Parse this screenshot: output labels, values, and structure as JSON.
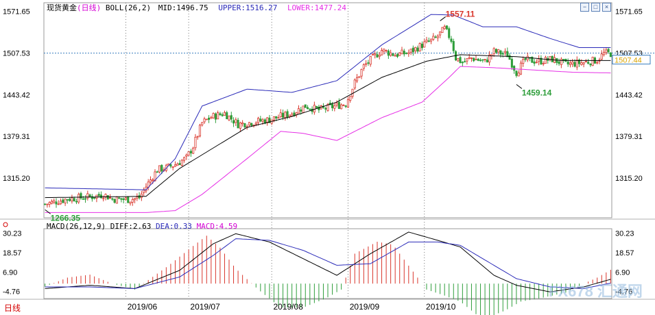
{
  "header": {
    "instrument": "现货黄金",
    "period_label": "(日线)",
    "indicator": "BOLL(26,2)",
    "mid": "MID:1496.75",
    "upper": "UPPER:1516.27",
    "lower": "LOWER:1477.24"
  },
  "macd_header": {
    "params": "MACD(26,12,9)",
    "diff": "DIFF:2.63",
    "dea": "DEA:0.33",
    "macd": "MACD:4.59"
  },
  "bottom": {
    "period_tab": "日线"
  },
  "controls": [
    {
      "name": "minus-icon",
      "glyph": "−"
    },
    {
      "name": "maximize-icon",
      "glyph": "□"
    },
    {
      "name": "close-icon",
      "glyph": "×"
    }
  ],
  "watermark": "FX678 汇通网",
  "colors": {
    "up": "#d9352b",
    "down": "#2e9e3b",
    "mid": "#000000",
    "upper": "#2929b8",
    "lower": "#e62ee6",
    "diff": "#000000",
    "dea": "#2929b8",
    "price_line": "#3a7fc0"
  },
  "chart_data": [
    {
      "type": "candlestick",
      "panel": "price",
      "y_ticks": [
        "1571.65",
        "1507.53",
        "1443.42",
        "1379.31",
        "1315.20"
      ],
      "ylim": [
        1254,
        1585
      ],
      "x_ticks": [
        "2019/06",
        "2019/07",
        "2019/08",
        "2019/09",
        "2019/10"
      ],
      "current_price": "1507.44",
      "reference_price": "1507.53",
      "annotations": [
        {
          "text": "1557.11",
          "kind": "high"
        },
        {
          "text": "1459.14",
          "kind": "low"
        },
        {
          "text": "1266.35",
          "kind": "low"
        }
      ],
      "close_path": [
        [
          0,
          1275
        ],
        [
          10,
          1283
        ],
        [
          22,
          1287
        ],
        [
          26,
          1290
        ],
        [
          30,
          1283
        ],
        [
          38,
          1282
        ],
        [
          42,
          1285
        ],
        [
          45,
          1302
        ],
        [
          50,
          1328
        ],
        [
          54,
          1331
        ],
        [
          58,
          1336
        ],
        [
          63,
          1346
        ],
        [
          66,
          1364
        ],
        [
          70,
          1400
        ],
        [
          74,
          1409
        ],
        [
          80,
          1415
        ],
        [
          86,
          1398
        ],
        [
          90,
          1400
        ],
        [
          100,
          1405
        ],
        [
          110,
          1415
        ],
        [
          116,
          1426
        ],
        [
          122,
          1420
        ],
        [
          128,
          1425
        ],
        [
          134,
          1430
        ],
        [
          138,
          1462
        ],
        [
          142,
          1487
        ],
        [
          146,
          1500
        ],
        [
          150,
          1512
        ],
        [
          156,
          1505
        ],
        [
          162,
          1508
        ],
        [
          168,
          1520
        ],
        [
          174,
          1530
        ],
        [
          178,
          1545
        ],
        [
          181,
          1528
        ],
        [
          183,
          1500
        ],
        [
          186,
          1493
        ],
        [
          190,
          1500
        ],
        [
          196,
          1494
        ],
        [
          200,
          1510
        ],
        [
          206,
          1505
        ],
        [
          210,
          1478
        ],
        [
          214,
          1497
        ],
        [
          220,
          1495
        ],
        [
          226,
          1498
        ],
        [
          232,
          1490
        ],
        [
          240,
          1493
        ],
        [
          246,
          1497
        ],
        [
          249,
          1507
        ],
        [
          252,
          1507
        ]
      ],
      "bands": {
        "mid": [
          [
            0,
            1285
          ],
          [
            45,
            1287
          ],
          [
            60,
            1330
          ],
          [
            90,
            1393
          ],
          [
            110,
            1410
          ],
          [
            130,
            1432
          ],
          [
            150,
            1470
          ],
          [
            170,
            1495
          ],
          [
            185,
            1505
          ],
          [
            210,
            1502
          ],
          [
            230,
            1496
          ],
          [
            252,
            1496
          ]
        ],
        "upper": [
          [
            0,
            1300
          ],
          [
            45,
            1297
          ],
          [
            58,
            1345
          ],
          [
            70,
            1426
          ],
          [
            90,
            1452
          ],
          [
            110,
            1447
          ],
          [
            130,
            1465
          ],
          [
            150,
            1520
          ],
          [
            172,
            1567
          ],
          [
            182,
            1566
          ],
          [
            195,
            1548
          ],
          [
            210,
            1548
          ],
          [
            225,
            1530
          ],
          [
            238,
            1516
          ],
          [
            252,
            1516
          ]
        ],
        "lower": [
          [
            0,
            1262
          ],
          [
            45,
            1262
          ],
          [
            58,
            1265
          ],
          [
            70,
            1290
          ],
          [
            90,
            1345
          ],
          [
            105,
            1387
          ],
          [
            115,
            1384
          ],
          [
            130,
            1373
          ],
          [
            150,
            1408
          ],
          [
            168,
            1432
          ],
          [
            180,
            1470
          ],
          [
            185,
            1487
          ],
          [
            200,
            1485
          ],
          [
            215,
            1482
          ],
          [
            235,
            1478
          ],
          [
            252,
            1477
          ]
        ]
      }
    },
    {
      "type": "macd",
      "panel": "macd",
      "y_ticks": [
        "30.23",
        "18.57",
        "6.90",
        "-4.76"
      ],
      "ylim": [
        -9,
        33
      ],
      "diff": [
        [
          0,
          -3
        ],
        [
          20,
          -1
        ],
        [
          40,
          -3
        ],
        [
          60,
          8
        ],
        [
          75,
          24
        ],
        [
          85,
          30
        ],
        [
          100,
          25
        ],
        [
          115,
          15
        ],
        [
          130,
          5
        ],
        [
          145,
          18
        ],
        [
          162,
          31
        ],
        [
          175,
          26
        ],
        [
          185,
          22
        ],
        [
          200,
          5
        ],
        [
          210,
          -1
        ],
        [
          225,
          -5
        ],
        [
          240,
          -2
        ],
        [
          252,
          2.6
        ]
      ],
      "dea": [
        [
          0,
          -2
        ],
        [
          20,
          -2
        ],
        [
          40,
          -3
        ],
        [
          60,
          4
        ],
        [
          75,
          17
        ],
        [
          85,
          27
        ],
        [
          100,
          26
        ],
        [
          115,
          20
        ],
        [
          130,
          11
        ],
        [
          145,
          12
        ],
        [
          162,
          25
        ],
        [
          175,
          25
        ],
        [
          185,
          23
        ],
        [
          200,
          11
        ],
        [
          210,
          3
        ],
        [
          225,
          -2
        ],
        [
          240,
          -3
        ],
        [
          252,
          0.3
        ]
      ],
      "hist": [
        [
          0,
          -1
        ],
        [
          10,
          2
        ],
        [
          20,
          3
        ],
        [
          30,
          0
        ],
        [
          40,
          -2
        ],
        [
          55,
          6
        ],
        [
          65,
          12
        ],
        [
          72,
          16
        ],
        [
          78,
          12
        ],
        [
          85,
          5
        ],
        [
          95,
          -2
        ],
        [
          105,
          -8
        ],
        [
          115,
          -8
        ],
        [
          125,
          -5
        ],
        [
          132,
          -2
        ],
        [
          138,
          10
        ],
        [
          148,
          14
        ],
        [
          155,
          13
        ],
        [
          162,
          6
        ],
        [
          170,
          -2
        ],
        [
          178,
          -4
        ],
        [
          185,
          -6
        ],
        [
          195,
          -12
        ],
        [
          205,
          -9
        ],
        [
          212,
          -6
        ],
        [
          220,
          -5
        ],
        [
          232,
          -3
        ],
        [
          240,
          0
        ],
        [
          246,
          2
        ],
        [
          252,
          4.6
        ]
      ]
    }
  ]
}
